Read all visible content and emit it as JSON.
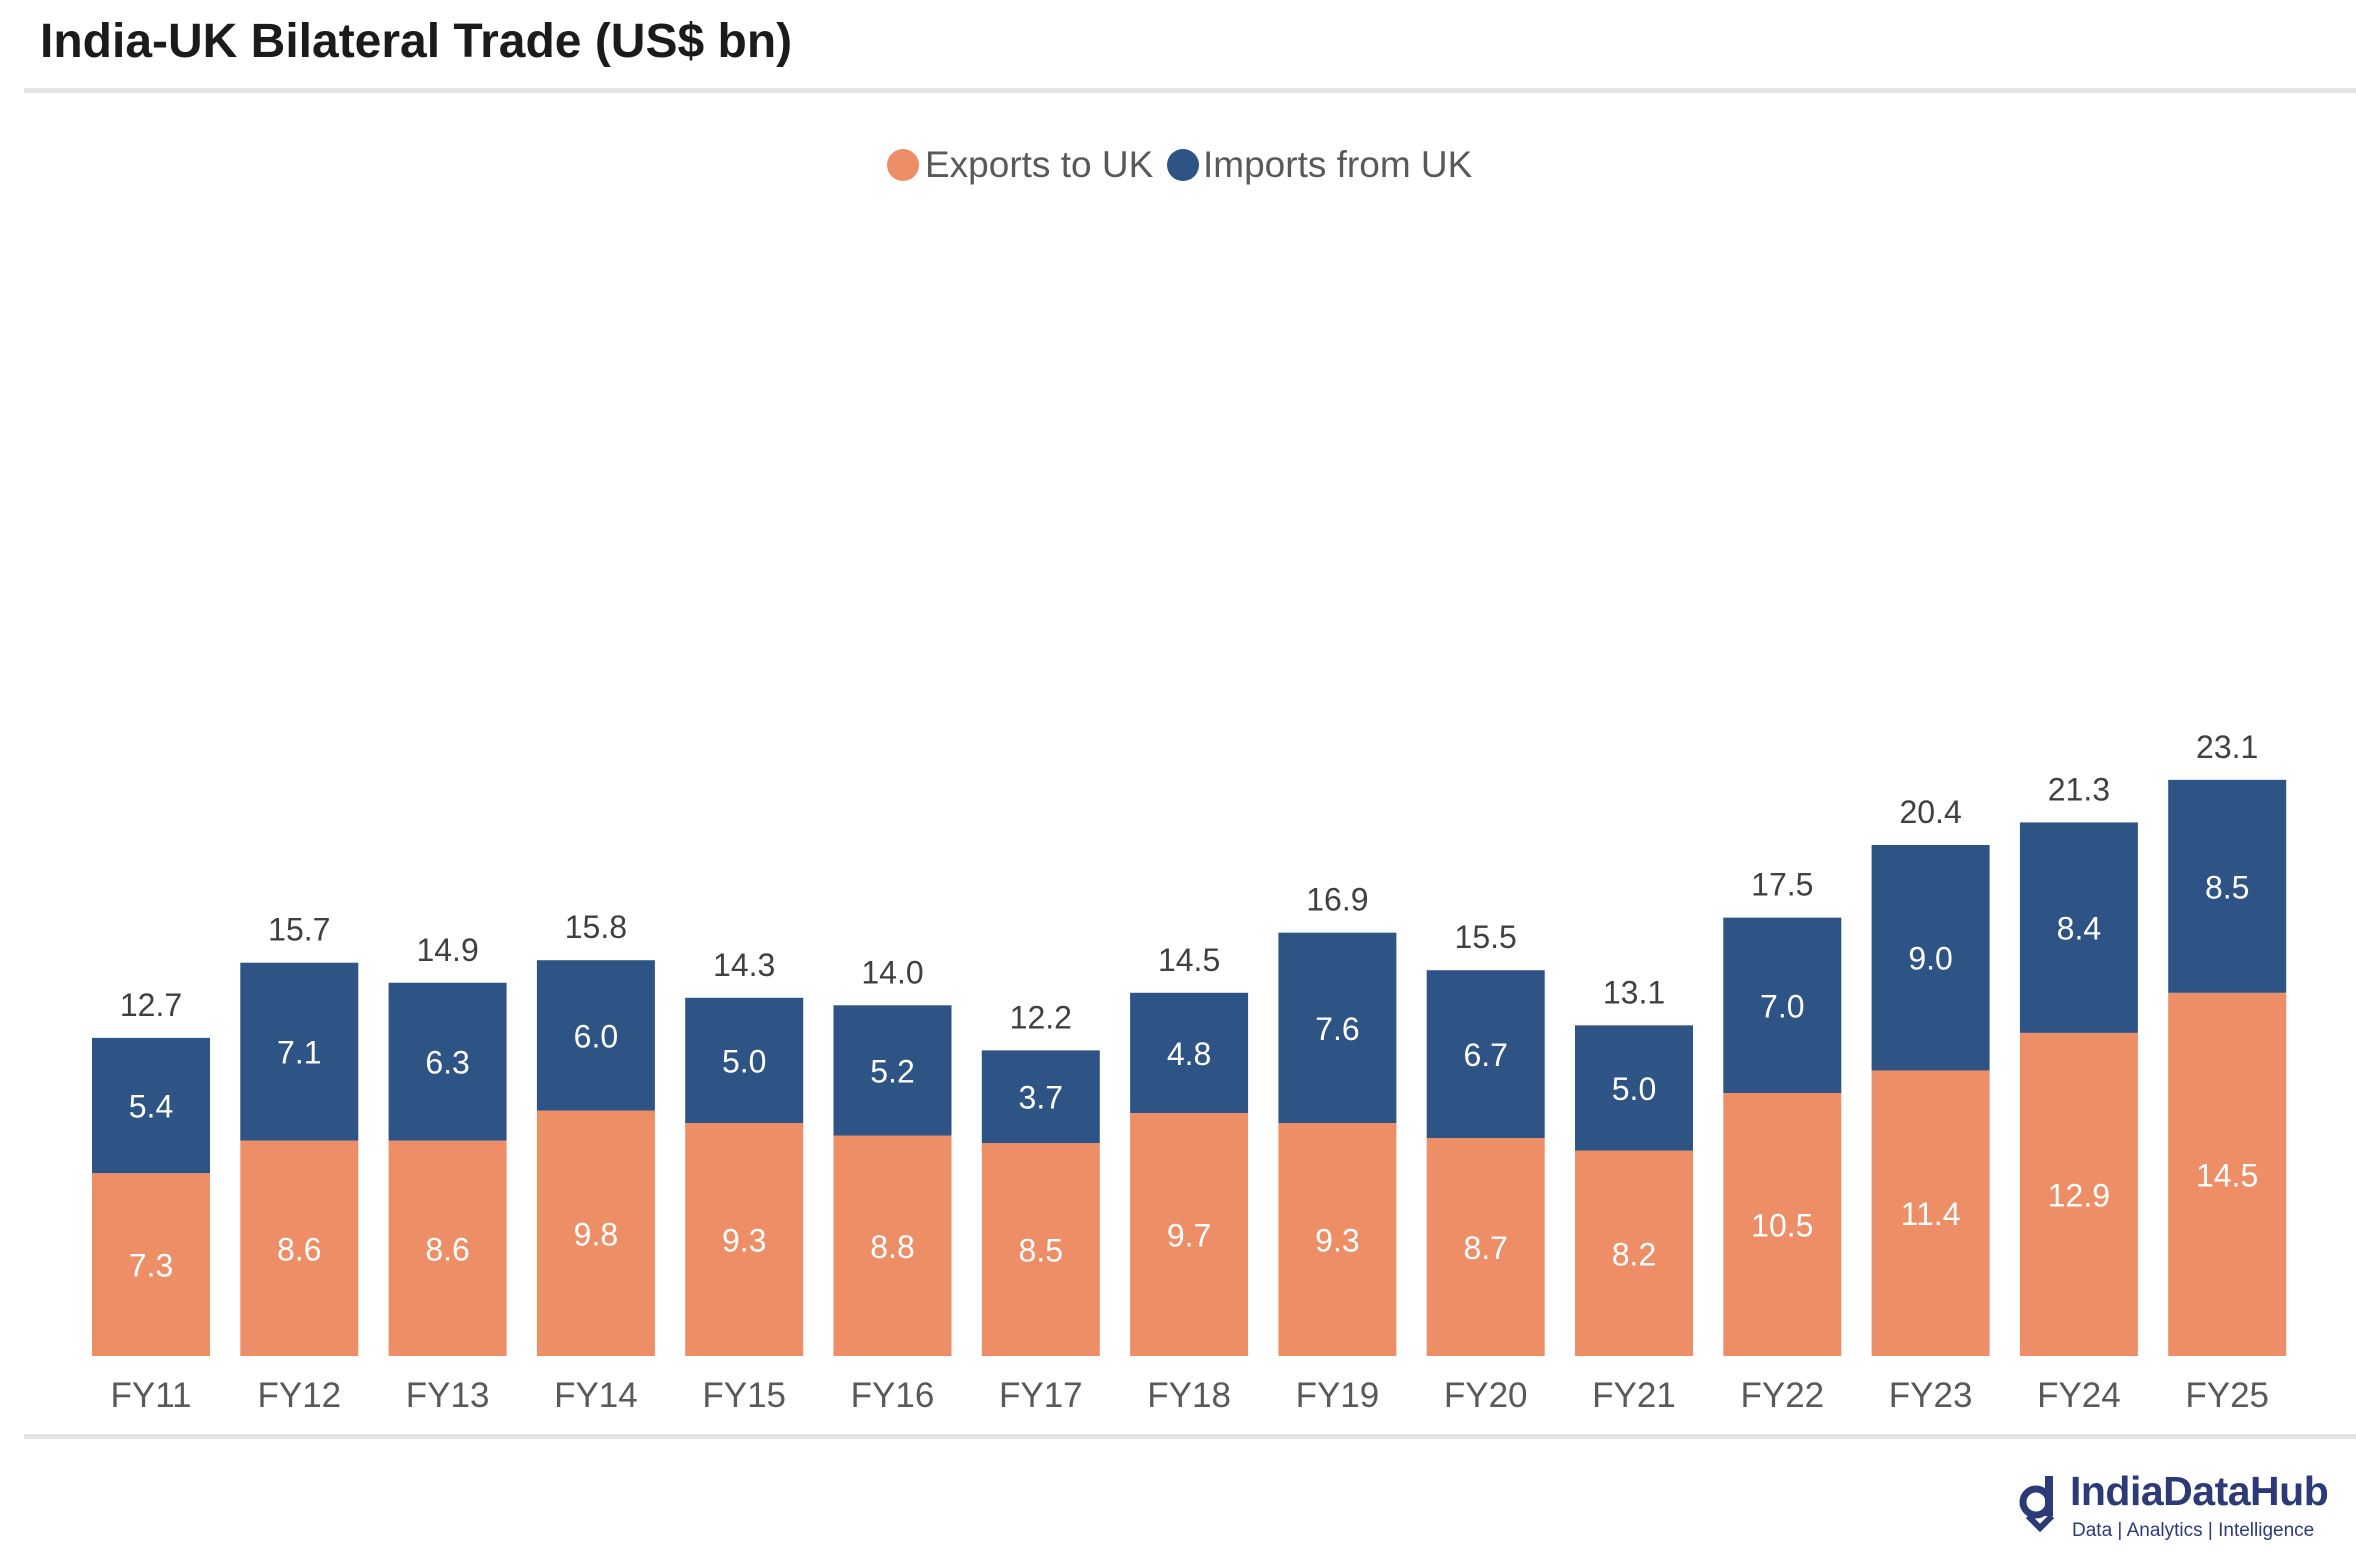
{
  "page": {
    "title": "India-UK Bilateral Trade (US$ bn)"
  },
  "brand": {
    "name": "IndiaDataHub",
    "tagline": "Data | Analytics | Intelligence",
    "color": "#2d3a78",
    "icon": "indiadatahub-logo-icon"
  },
  "chart_data": {
    "type": "bar",
    "stacked": true,
    "title": "India-UK Bilateral Trade (US$ bn)",
    "xlabel": "",
    "ylabel": "",
    "ylim": [
      0,
      25
    ],
    "grid": false,
    "legend_position": "top-center",
    "categories": [
      "FY11",
      "FY12",
      "FY13",
      "FY14",
      "FY15",
      "FY16",
      "FY17",
      "FY18",
      "FY19",
      "FY20",
      "FY21",
      "FY22",
      "FY23",
      "FY24",
      "FY25"
    ],
    "series": [
      {
        "name": "Exports to UK",
        "color": "#ee8e67",
        "values": [
          7.3,
          8.6,
          8.6,
          9.8,
          9.3,
          8.8,
          8.5,
          9.7,
          9.3,
          8.7,
          8.2,
          10.5,
          11.4,
          12.9,
          14.5
        ]
      },
      {
        "name": "Imports from UK",
        "color": "#2e5385",
        "values": [
          5.4,
          7.1,
          6.3,
          6.0,
          5.0,
          5.2,
          3.7,
          4.8,
          7.6,
          6.7,
          5.0,
          7.0,
          9.0,
          8.4,
          8.5
        ]
      }
    ],
    "totals": [
      12.7,
      15.7,
      14.9,
      15.8,
      14.3,
      14.0,
      12.2,
      14.5,
      16.9,
      15.5,
      13.1,
      17.5,
      20.4,
      21.3,
      23.1
    ]
  }
}
